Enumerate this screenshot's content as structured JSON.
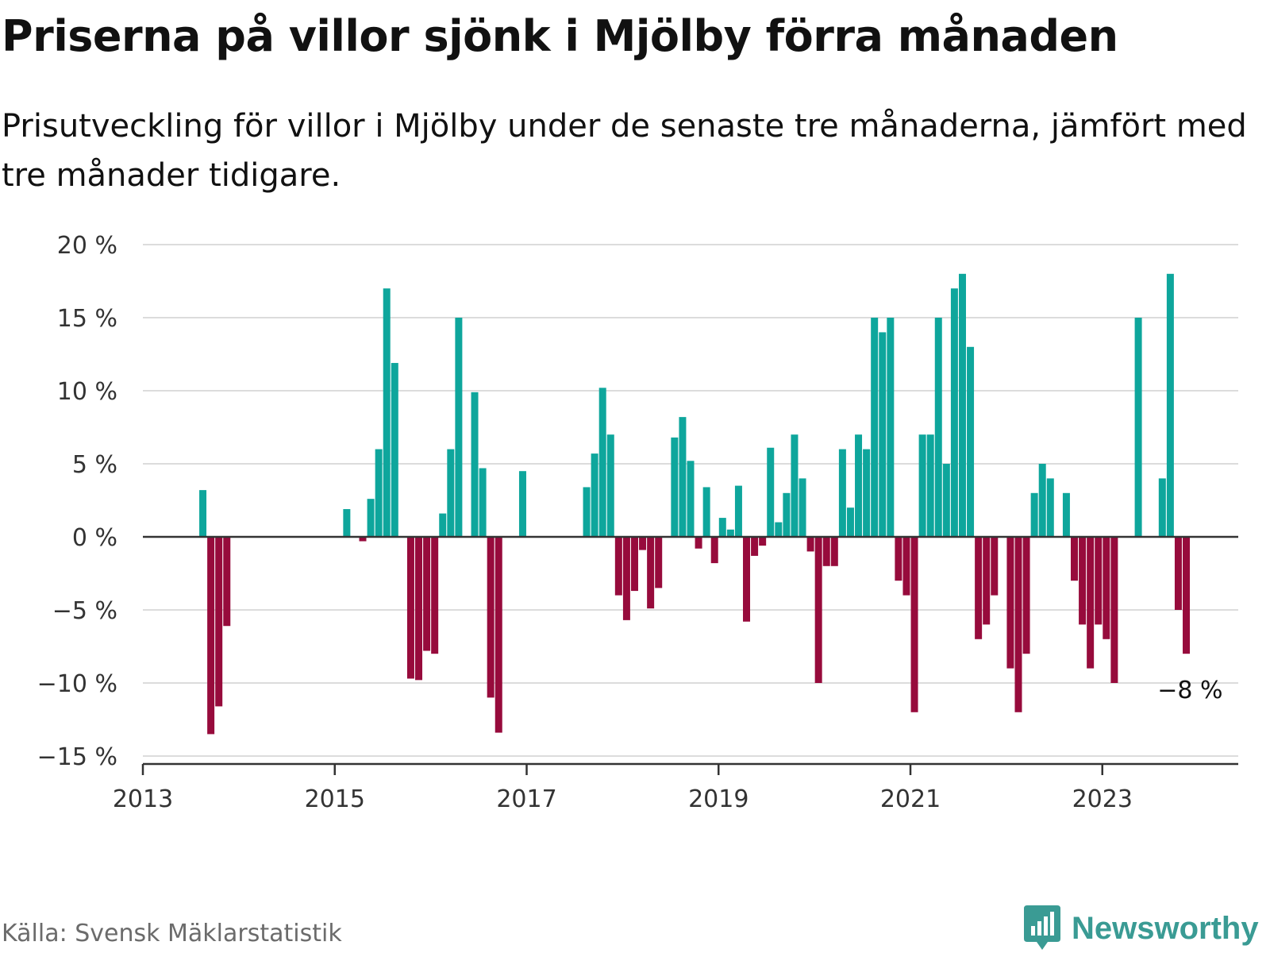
{
  "header": {
    "title": "Priserna på villor sjönk i Mjölby förra månaden",
    "subtitle": "Prisutveckling för villor i Mjölby under de senaste tre månaderna, jämfört med tre månader tidigare."
  },
  "footer": {
    "source": "Källa: Svensk Mäklarstatistik",
    "brand": "Newsworthy"
  },
  "colors": {
    "positive": "#0ea69c",
    "negative": "#970b3c",
    "grid": "#dcdcdc",
    "axis": "#333333",
    "brand": "#3a9b94"
  },
  "chart_data": {
    "type": "bar",
    "title": "Priserna på villor sjönk i Mjölby förra månaden",
    "subtitle": "Prisutveckling för villor i Mjölby under de senaste tre månaderna, jämfört med tre månader tidigare.",
    "xlabel": "",
    "ylabel": "",
    "ylim": [
      -15,
      20
    ],
    "xlim": [
      "2013-01",
      "2024-06"
    ],
    "grid": true,
    "legend": "none",
    "y_ticks": [
      {
        "value": 20,
        "label": "20 %"
      },
      {
        "value": 15,
        "label": "15 %"
      },
      {
        "value": 10,
        "label": "10 %"
      },
      {
        "value": 5,
        "label": "5 %"
      },
      {
        "value": 0,
        "label": "0 %"
      },
      {
        "value": -5,
        "label": "−5 %"
      },
      {
        "value": -10,
        "label": "−10 %"
      },
      {
        "value": -15,
        "label": "−15 %"
      }
    ],
    "x_ticks": [
      "2013",
      "2015",
      "2017",
      "2019",
      "2021",
      "2023"
    ],
    "annotation": {
      "month": "2023-11",
      "label": "−8 %"
    },
    "series": [
      {
        "name": "",
        "points": [
          {
            "month": "2013-08",
            "value": 3.2
          },
          {
            "month": "2013-09",
            "value": -13.5
          },
          {
            "month": "2013-10",
            "value": -11.6
          },
          {
            "month": "2013-11",
            "value": -6.1
          },
          {
            "month": "2015-02",
            "value": 1.9
          },
          {
            "month": "2015-04",
            "value": -0.3
          },
          {
            "month": "2015-05",
            "value": 2.6
          },
          {
            "month": "2015-06",
            "value": 6.0
          },
          {
            "month": "2015-07",
            "value": 17.0
          },
          {
            "month": "2015-08",
            "value": 11.9
          },
          {
            "month": "2015-10",
            "value": -9.7
          },
          {
            "month": "2015-11",
            "value": -9.8
          },
          {
            "month": "2015-12",
            "value": -7.8
          },
          {
            "month": "2016-01",
            "value": -8.0
          },
          {
            "month": "2016-02",
            "value": 1.6
          },
          {
            "month": "2016-03",
            "value": 6.0
          },
          {
            "month": "2016-04",
            "value": 15.0
          },
          {
            "month": "2016-06",
            "value": 9.9
          },
          {
            "month": "2016-07",
            "value": 4.7
          },
          {
            "month": "2016-08",
            "value": -11.0
          },
          {
            "month": "2016-09",
            "value": -13.4
          },
          {
            "month": "2016-12",
            "value": 4.5
          },
          {
            "month": "2017-08",
            "value": 3.4
          },
          {
            "month": "2017-09",
            "value": 5.7
          },
          {
            "month": "2017-10",
            "value": 10.2
          },
          {
            "month": "2017-11",
            "value": 7.0
          },
          {
            "month": "2017-12",
            "value": -4.0
          },
          {
            "month": "2018-01",
            "value": -5.7
          },
          {
            "month": "2018-02",
            "value": -3.7
          },
          {
            "month": "2018-03",
            "value": -0.9
          },
          {
            "month": "2018-04",
            "value": -4.9
          },
          {
            "month": "2018-05",
            "value": -3.5
          },
          {
            "month": "2018-07",
            "value": 6.8
          },
          {
            "month": "2018-08",
            "value": 8.2
          },
          {
            "month": "2018-09",
            "value": 5.2
          },
          {
            "month": "2018-10",
            "value": -0.8
          },
          {
            "month": "2018-11",
            "value": 3.4
          },
          {
            "month": "2018-12",
            "value": -1.8
          },
          {
            "month": "2019-01",
            "value": 1.3
          },
          {
            "month": "2019-02",
            "value": 0.5
          },
          {
            "month": "2019-03",
            "value": 3.5
          },
          {
            "month": "2019-04",
            "value": -5.8
          },
          {
            "month": "2019-05",
            "value": -1.3
          },
          {
            "month": "2019-06",
            "value": -0.6
          },
          {
            "month": "2019-07",
            "value": 6.1
          },
          {
            "month": "2019-08",
            "value": 1.0
          },
          {
            "month": "2019-09",
            "value": 3.0
          },
          {
            "month": "2019-10",
            "value": 7.0
          },
          {
            "month": "2019-11",
            "value": 4.0
          },
          {
            "month": "2019-12",
            "value": -1.0
          },
          {
            "month": "2020-01",
            "value": -10.0
          },
          {
            "month": "2020-02",
            "value": -2.0
          },
          {
            "month": "2020-03",
            "value": -2.0
          },
          {
            "month": "2020-04",
            "value": 6.0
          },
          {
            "month": "2020-05",
            "value": 2.0
          },
          {
            "month": "2020-06",
            "value": 7.0
          },
          {
            "month": "2020-07",
            "value": 6.0
          },
          {
            "month": "2020-08",
            "value": 15.0
          },
          {
            "month": "2020-09",
            "value": 14.0
          },
          {
            "month": "2020-10",
            "value": 15.0
          },
          {
            "month": "2020-11",
            "value": -3.0
          },
          {
            "month": "2020-12",
            "value": -4.0
          },
          {
            "month": "2021-01",
            "value": -12.0
          },
          {
            "month": "2021-02",
            "value": 7.0
          },
          {
            "month": "2021-03",
            "value": 7.0
          },
          {
            "month": "2021-04",
            "value": 15.0
          },
          {
            "month": "2021-05",
            "value": 5.0
          },
          {
            "month": "2021-06",
            "value": 17.0
          },
          {
            "month": "2021-07",
            "value": 18.0
          },
          {
            "month": "2021-08",
            "value": 13.0
          },
          {
            "month": "2021-09",
            "value": -7.0
          },
          {
            "month": "2021-10",
            "value": -6.0
          },
          {
            "month": "2021-11",
            "value": -4.0
          },
          {
            "month": "2022-01",
            "value": -9.0
          },
          {
            "month": "2022-02",
            "value": -12.0
          },
          {
            "month": "2022-03",
            "value": -8.0
          },
          {
            "month": "2022-04",
            "value": 3.0
          },
          {
            "month": "2022-05",
            "value": 5.0
          },
          {
            "month": "2022-06",
            "value": 4.0
          },
          {
            "month": "2022-08",
            "value": 3.0
          },
          {
            "month": "2022-09",
            "value": -3.0
          },
          {
            "month": "2022-10",
            "value": -6.0
          },
          {
            "month": "2022-11",
            "value": -9.0
          },
          {
            "month": "2022-12",
            "value": -6.0
          },
          {
            "month": "2023-01",
            "value": -7.0
          },
          {
            "month": "2023-02",
            "value": -10.0
          },
          {
            "month": "2023-05",
            "value": 15.0
          },
          {
            "month": "2023-08",
            "value": 4.0
          },
          {
            "month": "2023-09",
            "value": 18.0
          },
          {
            "month": "2023-10",
            "value": -5.0
          },
          {
            "month": "2023-11",
            "value": -8.0
          }
        ]
      }
    ]
  }
}
